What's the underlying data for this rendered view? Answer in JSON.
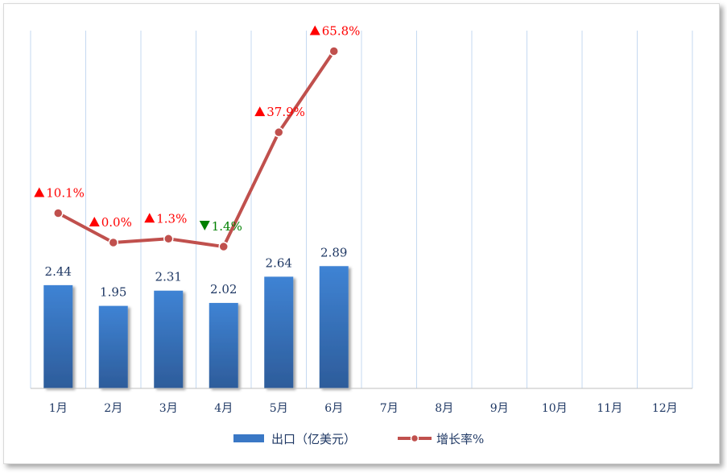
{
  "chart_data": {
    "type": "bar",
    "categories": [
      "1月",
      "2月",
      "3月",
      "4月",
      "5月",
      "6月",
      "7月",
      "8月",
      "9月",
      "10月",
      "11月",
      "12月"
    ],
    "series": [
      {
        "name": "出口（亿美元）",
        "type": "bar",
        "values": [
          2.44,
          1.95,
          2.31,
          2.02,
          2.64,
          2.89,
          null,
          null,
          null,
          null,
          null,
          null
        ],
        "labels": [
          "2.44",
          "1.95",
          "2.31",
          "2.02",
          "2.64",
          "2.89"
        ],
        "color": "#3a78c5"
      },
      {
        "name": "增长率%",
        "type": "line",
        "values": [
          10.1,
          0.0,
          1.3,
          -1.4,
          37.9,
          65.8,
          null,
          null,
          null,
          null,
          null,
          null
        ],
        "labels": [
          "10.1%",
          "0.0%",
          "1.3%",
          "1.4%",
          "37.9%",
          "65.8%"
        ],
        "directions": [
          "up",
          "up",
          "up",
          "down",
          "up",
          "up"
        ],
        "color": "#c0504d"
      }
    ],
    "colors": {
      "up": "#ff0000",
      "down": "#008000",
      "grid": "#c5d9f1",
      "axis": "#bfbfbf"
    },
    "legend": [
      "出口（亿美元）",
      "增长率%"
    ],
    "legend_position": "bottom",
    "grid": "vertical"
  }
}
